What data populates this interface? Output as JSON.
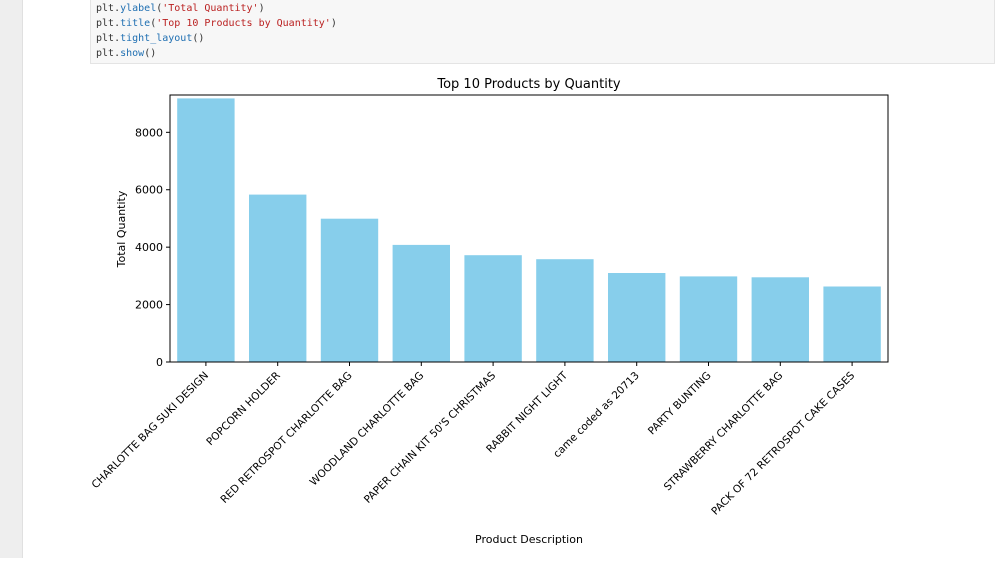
{
  "code_cell": {
    "lines": [
      {
        "obj": "plt",
        "method": "ylabel",
        "arg": "'Total Quantity'"
      },
      {
        "obj": "plt",
        "method": "title",
        "arg": "'Top 10 Products by Quantity'"
      },
      {
        "obj": "plt",
        "method": "tight_layout",
        "arg": ""
      },
      {
        "obj": "plt",
        "method": "show",
        "arg": ""
      }
    ]
  },
  "chart_data": {
    "type": "bar",
    "title": "Top 10 Products by Quantity",
    "xlabel": "Product Description",
    "ylabel": "Total Quantity",
    "ylim": [
      0,
      9300
    ],
    "yticks": [
      0,
      2000,
      4000,
      6000,
      8000
    ],
    "categories": [
      "CHARLOTTE BAG SUKI DESIGN",
      "POPCORN HOLDER",
      "RED RETROSPOT CHARLOTTE BAG",
      "WOODLAND CHARLOTTE BAG",
      "PAPER CHAIN KIT 50'S CHRISTMAS",
      "RABBIT NIGHT LIGHT",
      "came coded as 20713",
      "PARTY BUNTING",
      "STRAWBERRY CHARLOTTE BAG",
      "PACK OF 72 RETROSPOT CAKE CASES"
    ],
    "values": [
      9180,
      5830,
      4990,
      4080,
      3720,
      3580,
      3100,
      2980,
      2950,
      2630
    ],
    "bar_color": "#87ceeb",
    "grid": false
  }
}
